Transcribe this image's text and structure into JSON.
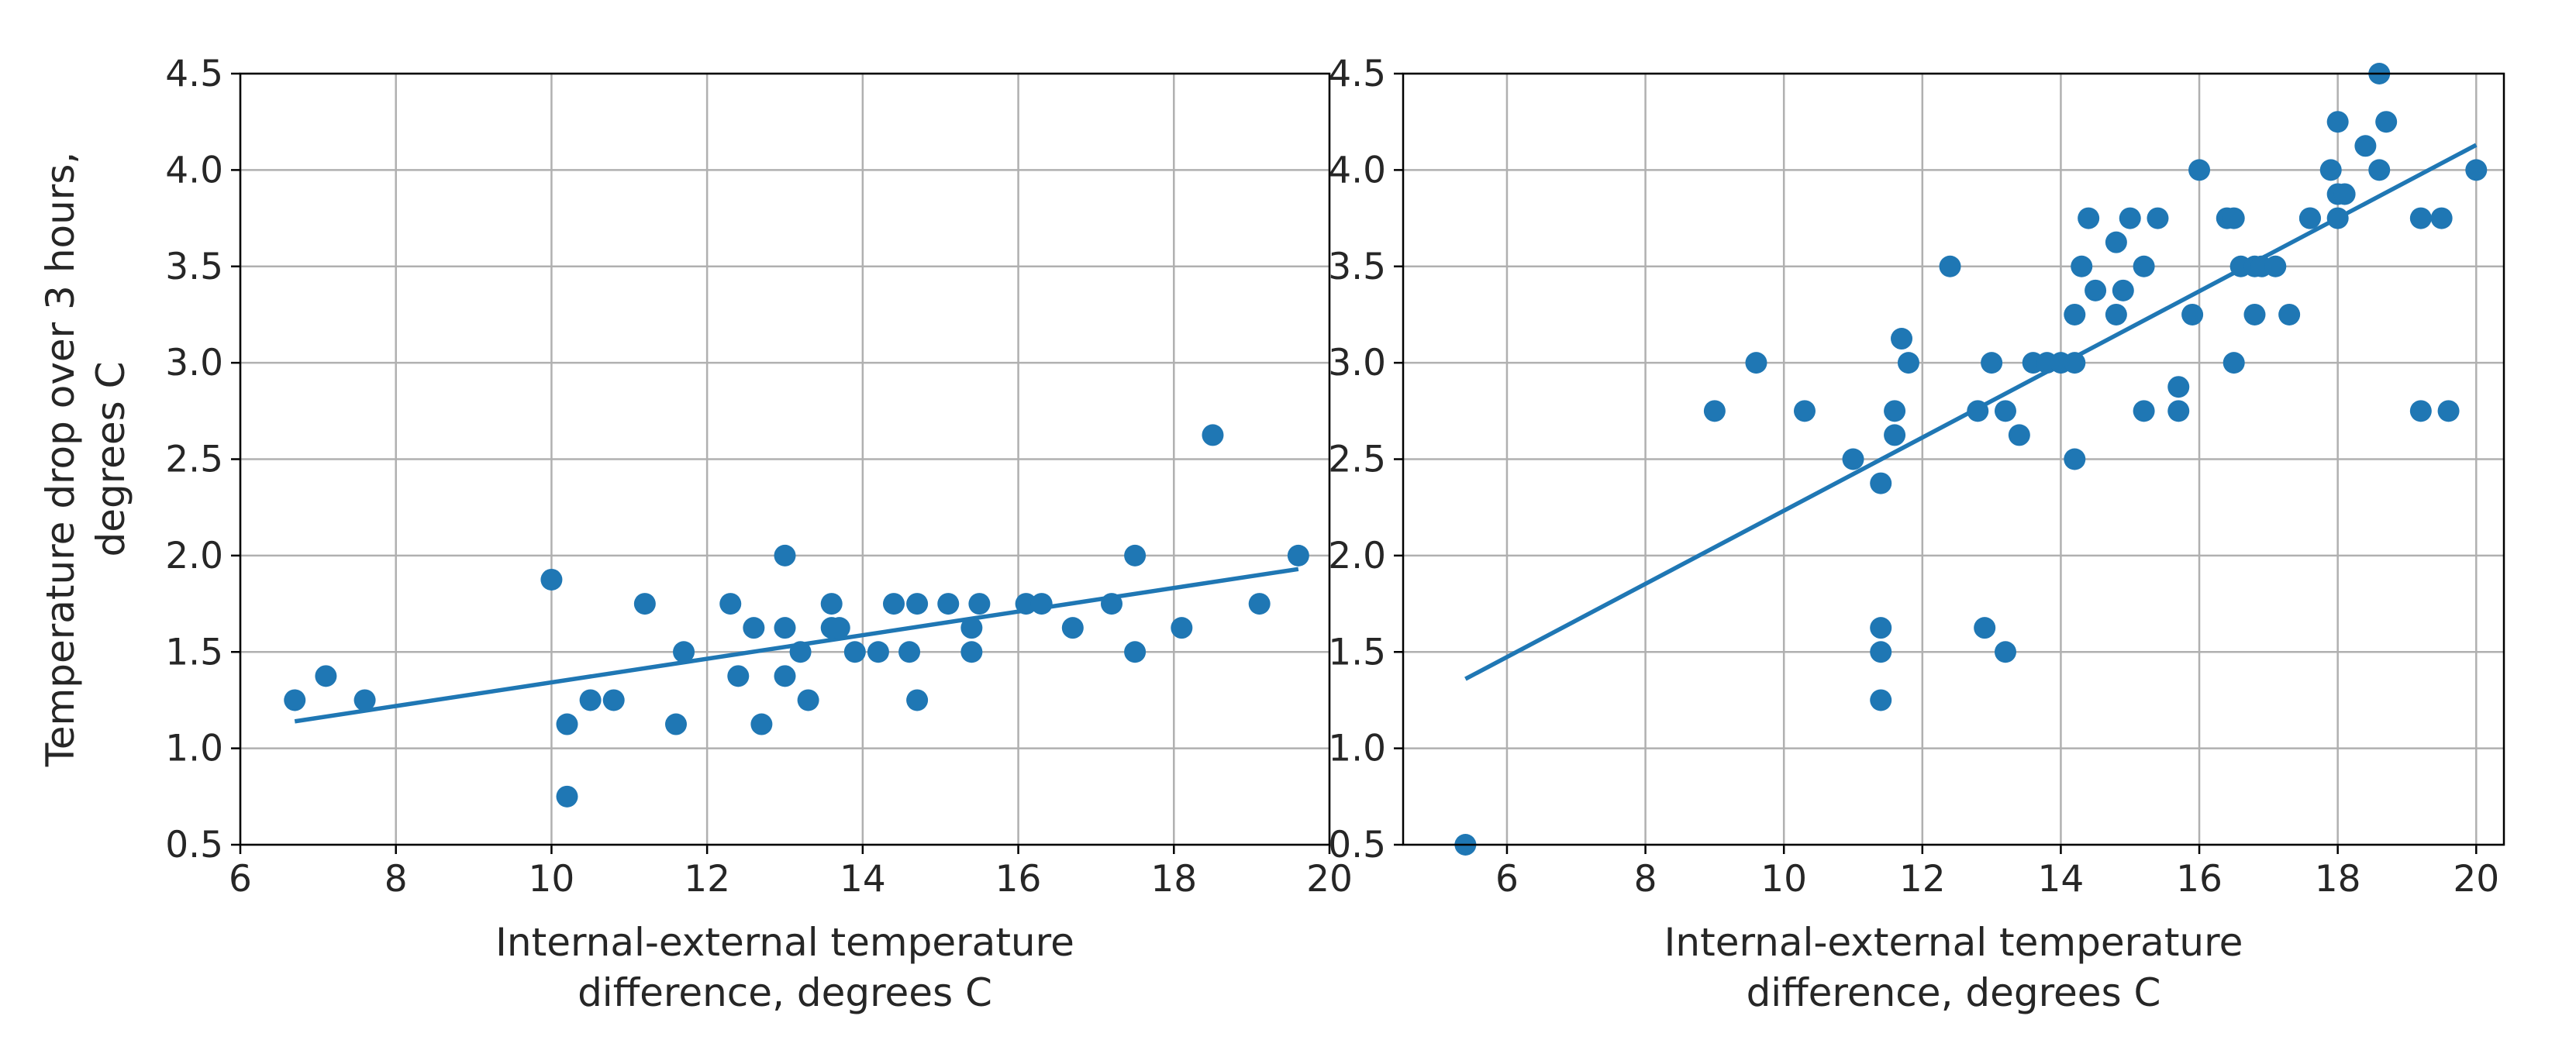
{
  "colors": {
    "series": "#1f77b4",
    "grid": "#b0b0b0",
    "axes": "#000000",
    "text": "#262626"
  },
  "chart_data": [
    {
      "type": "scatter",
      "title": "",
      "xlabel": [
        "Internal-external temperature",
        "difference, degrees C"
      ],
      "ylabel": [
        "Temperature drop over 3 hours,",
        "degrees C"
      ],
      "xlim": [
        6,
        20
      ],
      "ylim": [
        0.5,
        4.5
      ],
      "xticks": [
        "6",
        "8",
        "10",
        "12",
        "14",
        "16",
        "18",
        "20"
      ],
      "yticks": [
        "0.5",
        "1.0",
        "1.5",
        "2.0",
        "2.5",
        "3.0",
        "3.5",
        "4.0",
        "4.5"
      ],
      "grid": true,
      "fit_line": {
        "x": [
          6.7,
          19.6
        ],
        "y": [
          1.14,
          1.93
        ]
      },
      "x": [
        6.7,
        7.1,
        7.6,
        10.0,
        10.2,
        10.2,
        10.5,
        10.8,
        11.2,
        11.6,
        11.7,
        12.3,
        12.4,
        12.6,
        12.7,
        13.0,
        13.0,
        13.0,
        13.2,
        13.3,
        13.6,
        13.6,
        13.7,
        13.9,
        14.2,
        14.4,
        14.6,
        14.7,
        14.7,
        15.1,
        15.4,
        15.4,
        15.5,
        16.1,
        16.3,
        16.7,
        17.2,
        17.5,
        17.5,
        18.1,
        18.5,
        19.1,
        19.6
      ],
      "y": [
        1.25,
        1.375,
        1.25,
        1.875,
        1.125,
        0.75,
        1.25,
        1.25,
        1.75,
        1.125,
        1.5,
        1.75,
        1.375,
        1.625,
        1.125,
        2.0,
        1.625,
        1.375,
        1.5,
        1.25,
        1.75,
        1.625,
        1.625,
        1.5,
        1.5,
        1.75,
        1.5,
        1.25,
        1.75,
        1.75,
        1.625,
        1.5,
        1.75,
        1.75,
        1.75,
        1.625,
        1.75,
        1.5,
        2.0,
        1.625,
        2.625,
        1.75,
        2.0
      ]
    },
    {
      "type": "scatter",
      "title": "",
      "xlabel": [
        "Internal-external temperature",
        "difference, degrees C"
      ],
      "ylabel": [],
      "xlim": [
        4.5,
        20.4
      ],
      "ylim": [
        0.5,
        4.5
      ],
      "xticks": [
        "6",
        "8",
        "10",
        "12",
        "14",
        "16",
        "18",
        "20"
      ],
      "yticks": [
        "0.5",
        "1.0",
        "1.5",
        "2.0",
        "2.5",
        "3.0",
        "3.5",
        "4.0",
        "4.5"
      ],
      "grid": true,
      "fit_line": {
        "x": [
          5.4,
          20.0
        ],
        "y": [
          1.36,
          4.13
        ]
      },
      "x": [
        5.4,
        9.0,
        9.6,
        10.3,
        11.0,
        11.4,
        11.4,
        11.4,
        11.4,
        11.6,
        11.6,
        11.7,
        11.8,
        12.4,
        12.8,
        12.9,
        13.0,
        13.2,
        13.2,
        13.4,
        13.6,
        13.8,
        14.0,
        14.2,
        14.2,
        14.2,
        14.3,
        14.4,
        14.5,
        14.8,
        14.8,
        14.9,
        15.0,
        15.2,
        15.2,
        15.4,
        15.7,
        15.7,
        15.9,
        16.0,
        16.4,
        16.5,
        16.5,
        16.6,
        16.8,
        16.8,
        16.9,
        17.1,
        17.3,
        17.6,
        17.6,
        17.9,
        18.0,
        18.0,
        18.0,
        18.1,
        18.4,
        18.6,
        18.6,
        18.7,
        19.2,
        19.2,
        19.5,
        19.6,
        20.0
      ],
      "y": [
        0.5,
        2.75,
        3.0,
        2.75,
        2.5,
        1.625,
        1.5,
        1.25,
        2.375,
        2.75,
        2.625,
        3.125,
        3.0,
        3.5,
        2.75,
        1.625,
        3.0,
        2.75,
        1.5,
        2.625,
        3.0,
        3.0,
        3.0,
        3.25,
        2.5,
        3.0,
        3.5,
        3.75,
        3.375,
        3.625,
        3.25,
        3.375,
        3.75,
        3.5,
        2.75,
        3.75,
        2.875,
        2.75,
        3.25,
        4.0,
        3.75,
        3.75,
        3.0,
        3.5,
        3.5,
        3.25,
        3.5,
        3.5,
        3.25,
        3.75,
        3.75,
        4.0,
        3.875,
        4.25,
        3.75,
        3.875,
        4.125,
        4.5,
        4.0,
        4.25,
        3.75,
        2.75,
        3.75,
        2.75,
        4.0
      ]
    }
  ]
}
